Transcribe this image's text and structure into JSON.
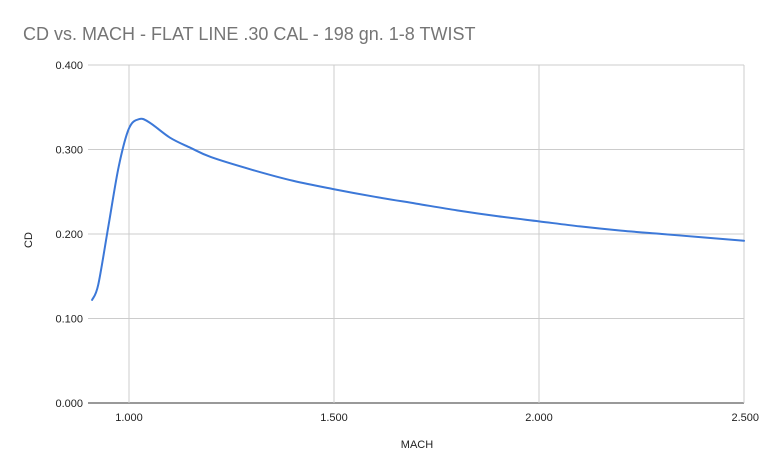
{
  "chart_data": {
    "type": "line",
    "title": "CD vs. MACH - FLAT LINE .30 CAL - 198 gn. 1-8 TWIST",
    "xlabel": "MACH",
    "ylabel": "CD",
    "xlim": [
      0.9,
      2.5
    ],
    "ylim": [
      0,
      0.4
    ],
    "x_ticks": [
      1.0,
      1.5,
      2.0,
      2.5
    ],
    "y_ticks": [
      0,
      0.1,
      0.2,
      0.3,
      0.4
    ],
    "x_tick_labels": [
      "1.000",
      "1.500",
      "2.000",
      "2.500"
    ],
    "y_tick_labels": [
      "0.000",
      "0.100",
      "0.200",
      "0.300",
      "0.400"
    ],
    "grid": true,
    "series": [
      {
        "color": "#3c78d8",
        "x": [
          0.91,
          0.925,
          0.95,
          0.975,
          1.0,
          1.025,
          1.05,
          1.1,
          1.15,
          1.2,
          1.3,
          1.4,
          1.5,
          1.6,
          1.7,
          1.8,
          1.9,
          2.0,
          2.1,
          2.2,
          2.3,
          2.4,
          2.5
        ],
        "y": [
          0.122,
          0.14,
          0.21,
          0.28,
          0.325,
          0.336,
          0.332,
          0.314,
          0.302,
          0.291,
          0.276,
          0.263,
          0.253,
          0.244,
          0.236,
          0.228,
          0.221,
          0.215,
          0.209,
          0.204,
          0.2,
          0.196,
          0.192
        ]
      }
    ]
  }
}
